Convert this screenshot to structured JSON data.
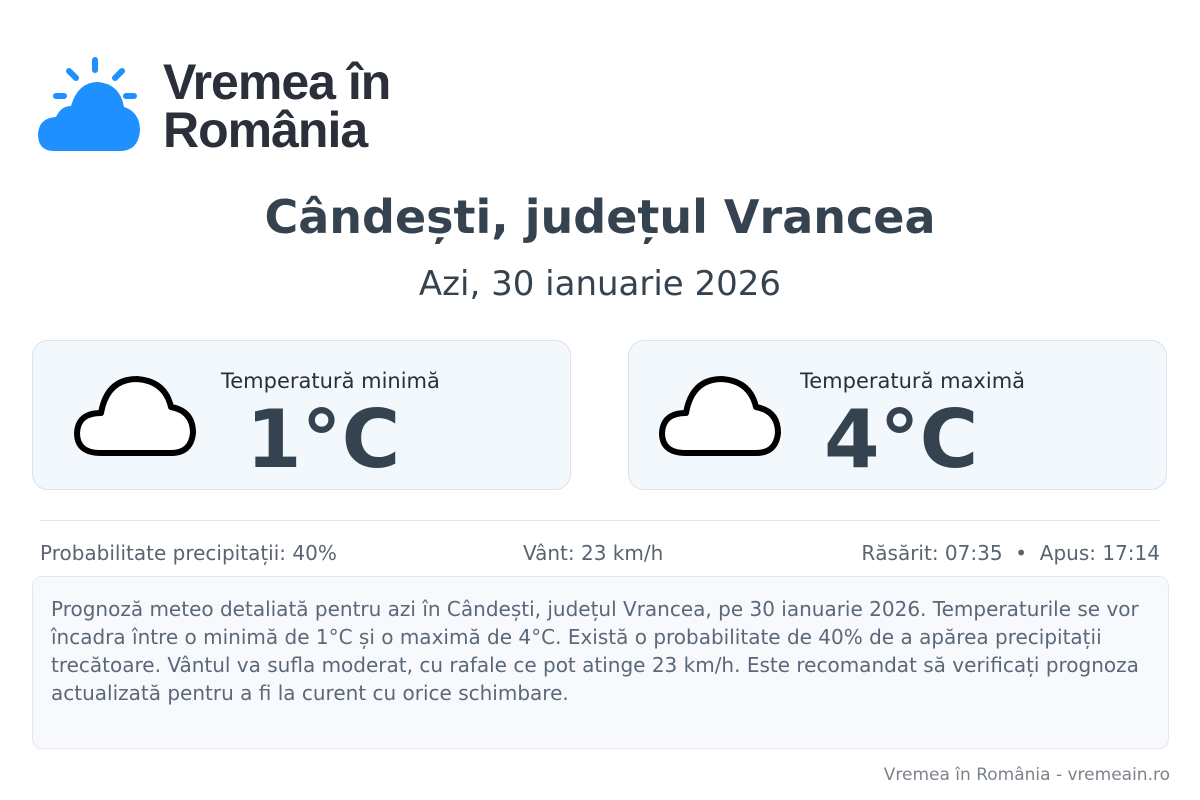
{
  "brand": {
    "name_line1": "Vremea în",
    "name_line2": "România",
    "accent": "#1e90ff"
  },
  "header": {
    "title": "Cândești, județul Vrancea",
    "date": "Azi, 30 ianuarie 2026"
  },
  "cards": [
    {
      "label": "Temperatură minimă",
      "value": "1°C",
      "icon": "cloud-icon"
    },
    {
      "label": "Temperatură maximă",
      "value": "4°C",
      "icon": "cloud-icon"
    }
  ],
  "stats": {
    "precipitation": "Probabilitate precipitații: 40%",
    "wind": "Vânt: 23 km/h",
    "sun": "Răsărit: 07:35  •  Apus: 17:14"
  },
  "description": "Prognoză meteo detaliată pentru azi în Cândești, județul Vrancea, pe 30 ianuarie 2026. Temperaturile se vor încadra între o minimă de 1°C și o maximă de 4°C. Există o probabilitate de 40% de a apărea precipitații trecătoare. Vântul va sufla moderat, cu rafale ce pot atinge 23 km/h. Este recomandat să verificați prognoza actualizată pentru a fi la curent cu orice schimbare.",
  "footer": "Vremea în România - vremeain.ro"
}
